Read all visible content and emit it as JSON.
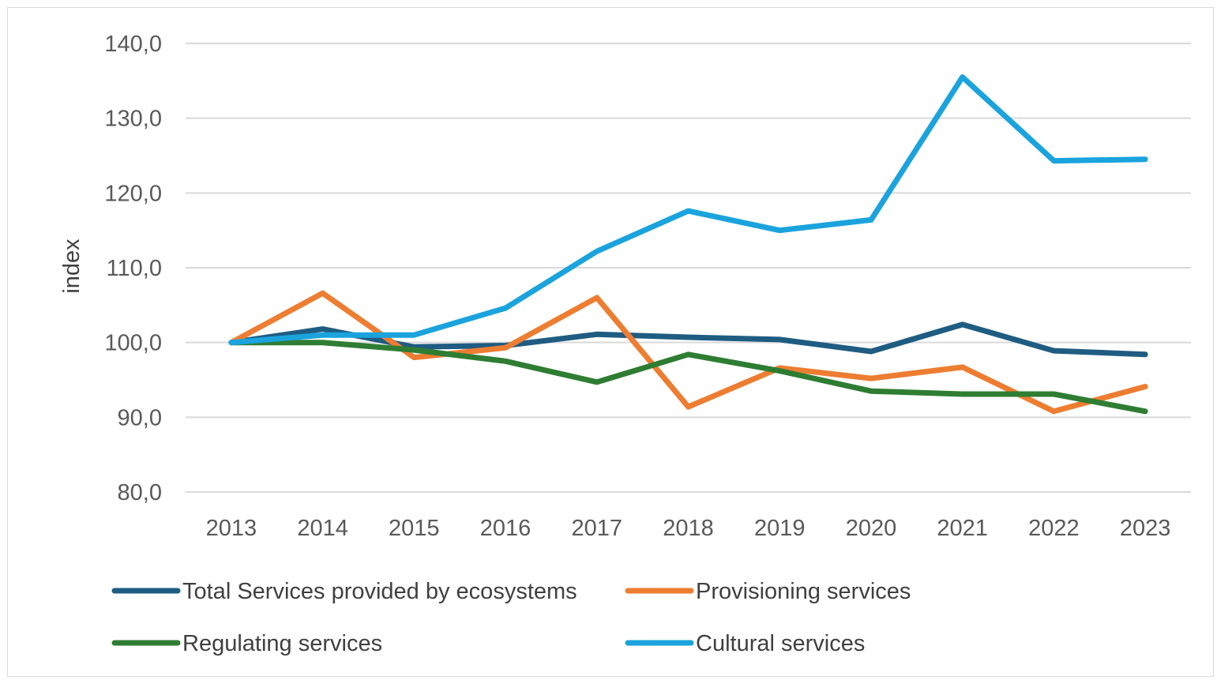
{
  "chart_data": {
    "type": "line",
    "title": "",
    "xlabel": "",
    "ylabel": "index",
    "x": [
      "2013",
      "2014",
      "2015",
      "2016",
      "2017",
      "2018",
      "2019",
      "2020",
      "2021",
      "2022",
      "2023"
    ],
    "ylim": [
      80,
      140
    ],
    "yticks": [
      "80,0",
      "90,0",
      "100,0",
      "110,0",
      "120,0",
      "130,0",
      "140,0"
    ],
    "grid": true,
    "legend_position": "bottom",
    "series": [
      {
        "name": "Total Services provided by ecosystems",
        "color": "#1f5c82",
        "values": [
          100.0,
          101.8,
          99.4,
          99.6,
          101.1,
          100.7,
          100.4,
          98.8,
          102.4,
          98.9,
          98.4
        ]
      },
      {
        "name": "Provisioning services",
        "color": "#ed7d31",
        "values": [
          100.0,
          106.6,
          98.0,
          99.3,
          106.0,
          91.4,
          96.6,
          95.2,
          96.7,
          90.8,
          94.1
        ]
      },
      {
        "name": "Regulating services",
        "color": "#2e7d32",
        "values": [
          100.0,
          100.0,
          99.0,
          97.5,
          94.7,
          98.4,
          96.2,
          93.5,
          93.1,
          93.1,
          90.8
        ]
      },
      {
        "name": "Cultural services",
        "color": "#1aa3dd",
        "values": [
          100.0,
          101.0,
          101.0,
          104.6,
          112.2,
          117.6,
          115.0,
          116.4,
          135.5,
          124.3,
          124.5
        ]
      }
    ]
  }
}
